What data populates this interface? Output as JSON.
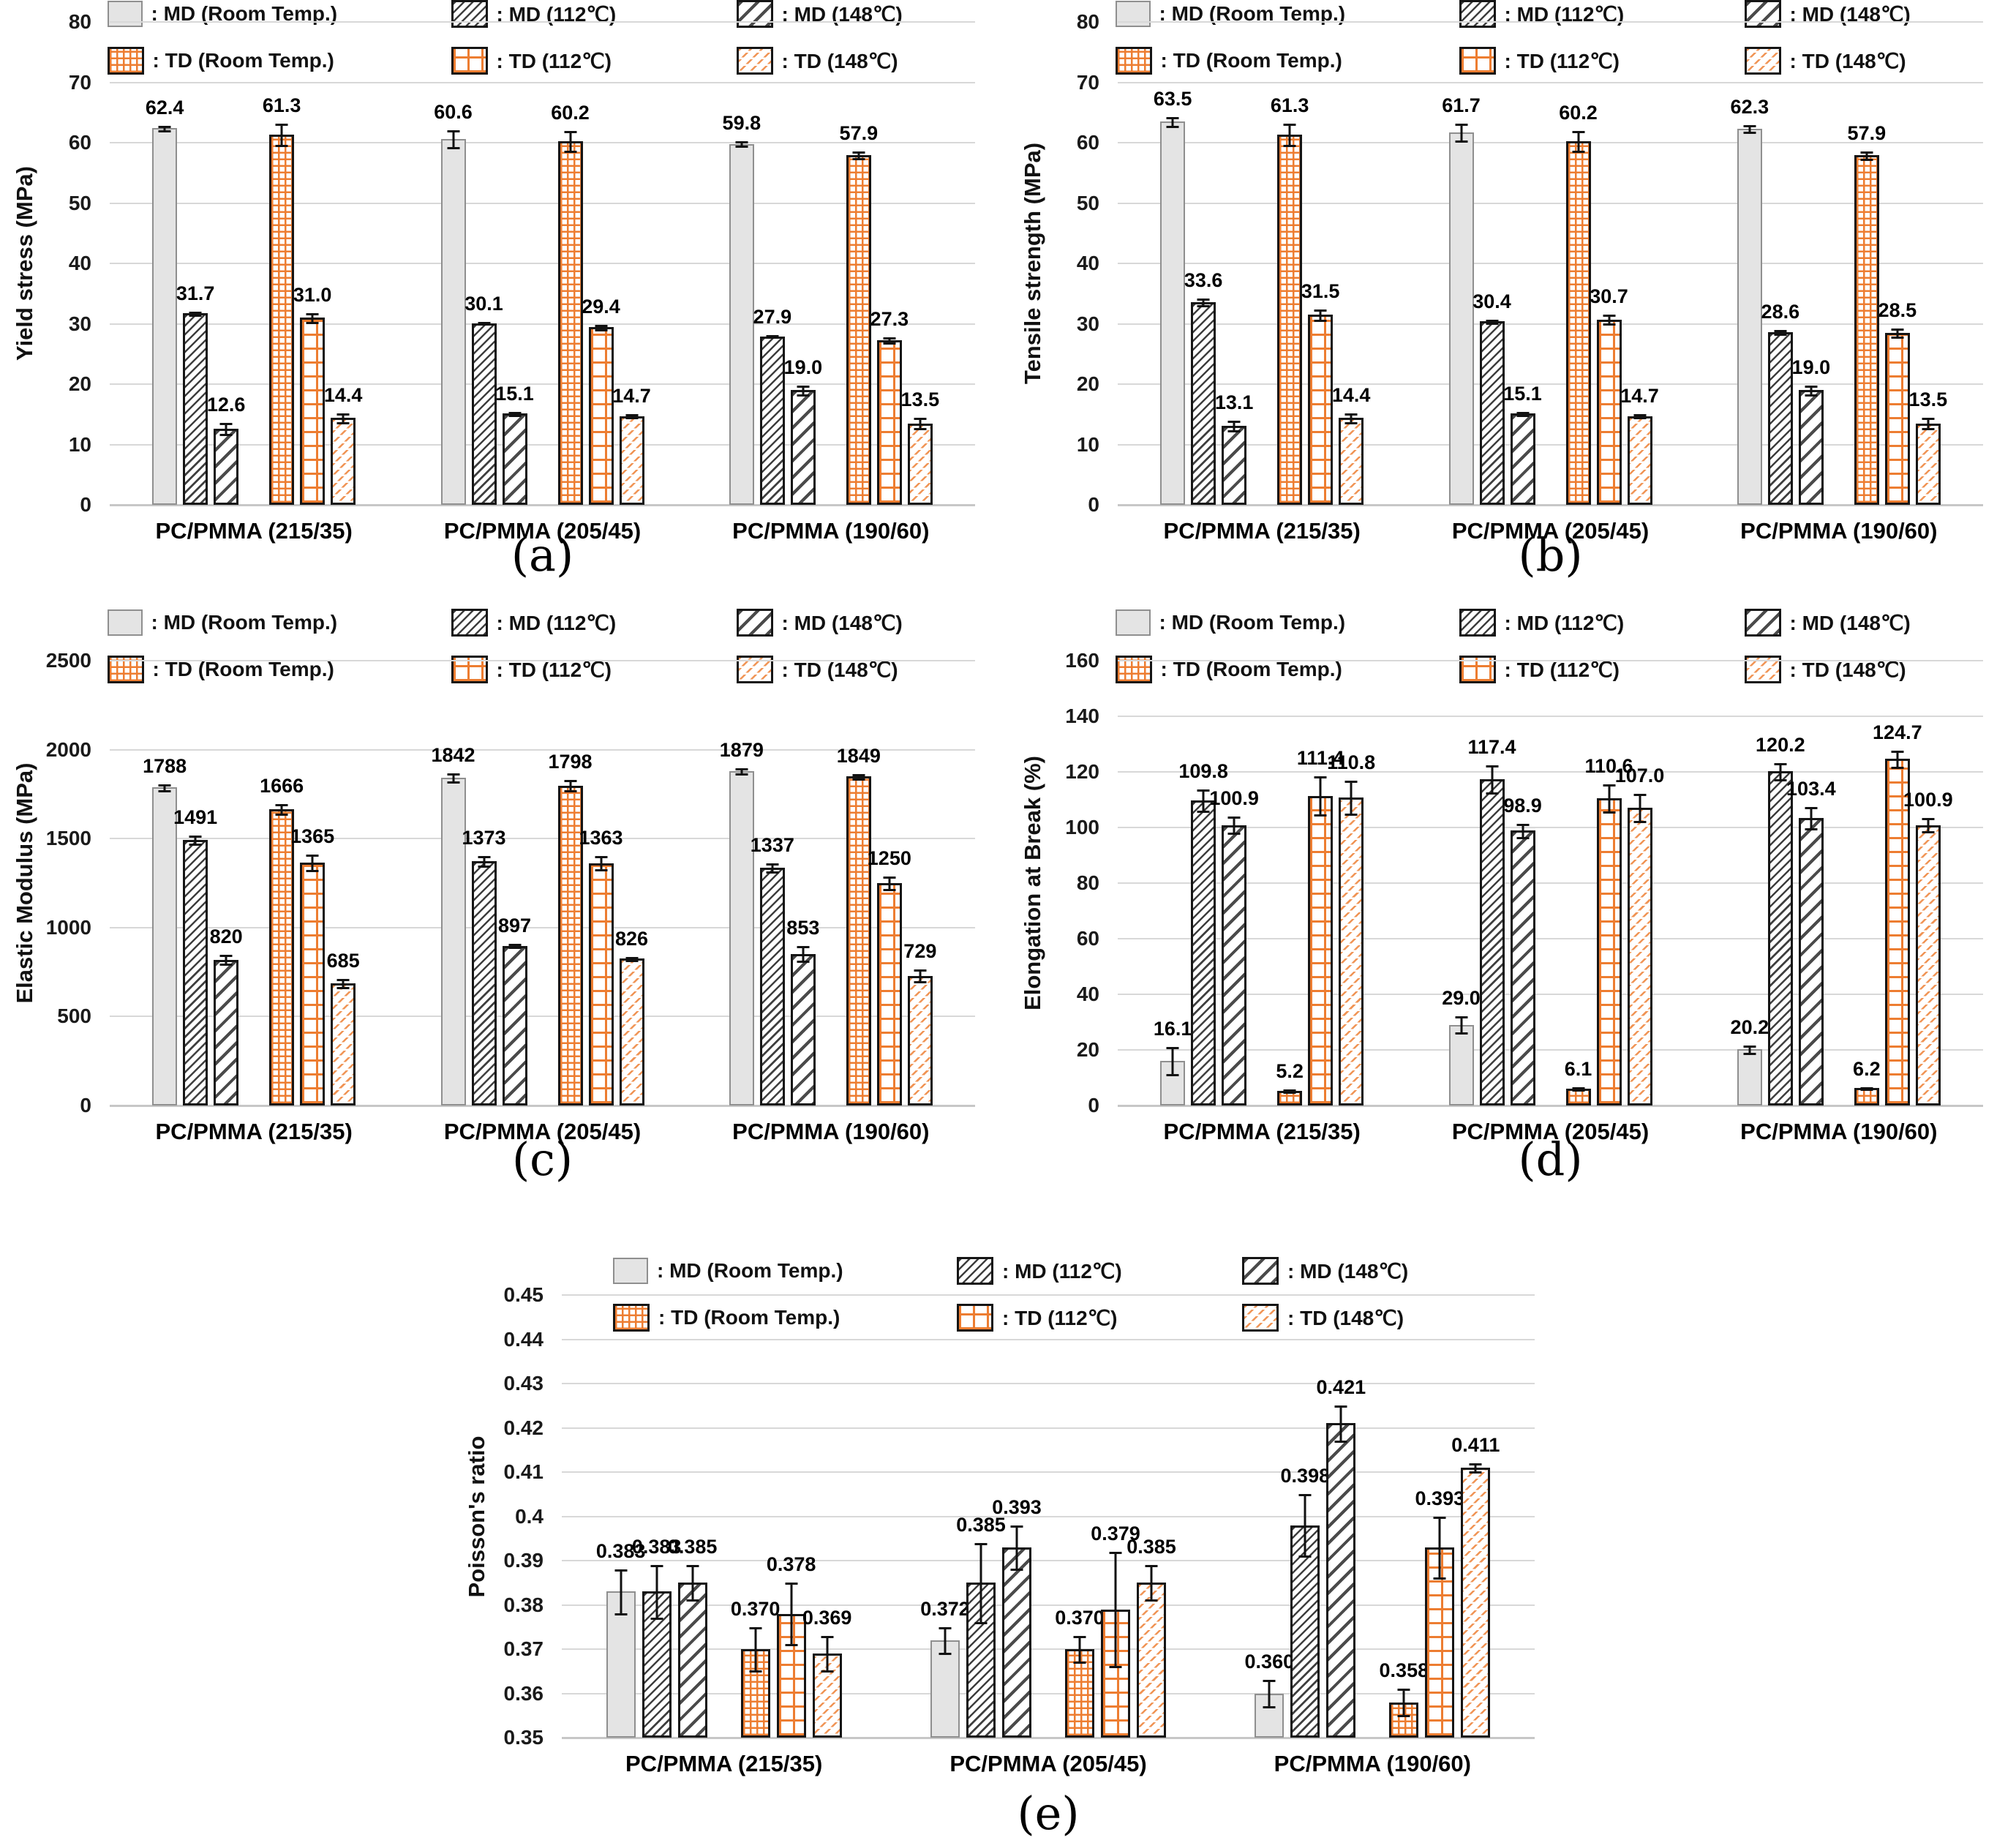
{
  "figure": {
    "background": "#ffffff",
    "colors": {
      "td_orange": "#ED7D31",
      "md_gray_fill": "#E4E4E4",
      "hatch_dark": "#3F3F3F",
      "gridline": "#D8D8D8",
      "label_text": "#000000"
    },
    "categories": [
      "PC/PMMA (215/35)",
      "PC/PMMA (205/45)",
      "PC/PMMA (190/60)"
    ],
    "legend_rows": [
      [
        0,
        1,
        2
      ],
      [
        3,
        4,
        5
      ]
    ]
  },
  "chart_data": [
    {
      "id": "a",
      "type": "bar",
      "caption": "(a)",
      "ylabel": "Yield stress (MPa)",
      "ylim": [
        0,
        80
      ],
      "value_decimals": 1,
      "grid": true,
      "legend_position": "top",
      "yticks": [
        {
          "v": 0,
          "label": "0"
        },
        {
          "v": 10,
          "label": "10"
        },
        {
          "v": 20,
          "label": "20"
        },
        {
          "v": 30,
          "label": "30"
        },
        {
          "v": 40,
          "label": "40"
        },
        {
          "v": 50,
          "label": "50"
        },
        {
          "v": 60,
          "label": "60"
        },
        {
          "v": 70,
          "label": "70"
        },
        {
          "v": 80,
          "label": "80"
        }
      ],
      "categories": [
        "PC/PMMA (215/35)",
        "PC/PMMA (205/45)",
        "PC/PMMA (190/60)"
      ],
      "series": [
        {
          "name": ": MD (Room Temp.)",
          "pattern": "md-rt",
          "values": [
            62.4,
            60.6,
            59.8
          ],
          "errors": [
            0.4,
            1.5,
            0.4
          ]
        },
        {
          "name": ": MD (112℃)",
          "pattern": "md-112",
          "values": [
            31.7,
            30.1,
            27.9
          ],
          "errors": [
            0.3,
            0.2,
            0.2
          ]
        },
        {
          "name": ": MD (148℃)",
          "pattern": "md-148",
          "values": [
            12.6,
            15.1,
            19.0
          ],
          "errors": [
            1.0,
            0.3,
            0.8
          ]
        },
        {
          "name": ": TD (Room Temp.)",
          "pattern": "td-rt",
          "values": [
            61.3,
            60.2,
            57.9
          ],
          "errors": [
            1.8,
            1.7,
            0.6
          ]
        },
        {
          "name": ": TD (112℃)",
          "pattern": "td-112",
          "values": [
            31.0,
            29.4,
            27.3
          ],
          "errors": [
            0.8,
            0.4,
            0.5
          ]
        },
        {
          "name": ": TD (148℃)",
          "pattern": "td-148",
          "values": [
            14.4,
            14.7,
            13.5
          ],
          "errors": [
            0.8,
            0.3,
            0.9
          ]
        }
      ]
    },
    {
      "id": "b",
      "type": "bar",
      "caption": "(b)",
      "ylabel": "Tensile strength (MPa)",
      "ylim": [
        0,
        80
      ],
      "value_decimals": 1,
      "grid": true,
      "legend_position": "top",
      "yticks": [
        {
          "v": 0,
          "label": "0"
        },
        {
          "v": 10,
          "label": "10"
        },
        {
          "v": 20,
          "label": "20"
        },
        {
          "v": 30,
          "label": "30"
        },
        {
          "v": 40,
          "label": "40"
        },
        {
          "v": 50,
          "label": "50"
        },
        {
          "v": 60,
          "label": "60"
        },
        {
          "v": 70,
          "label": "70"
        },
        {
          "v": 80,
          "label": "80"
        }
      ],
      "categories": [
        "PC/PMMA (215/35)",
        "PC/PMMA (205/45)",
        "PC/PMMA (190/60)"
      ],
      "series": [
        {
          "name": ": MD (Room Temp.)",
          "pattern": "md-rt",
          "values": [
            63.5,
            61.7,
            62.3
          ],
          "errors": [
            0.8,
            1.5,
            0.6
          ]
        },
        {
          "name": ": MD (112℃)",
          "pattern": "md-112",
          "values": [
            33.6,
            30.4,
            28.6
          ],
          "errors": [
            0.6,
            0.3,
            0.4
          ]
        },
        {
          "name": ": MD (148℃)",
          "pattern": "md-148",
          "values": [
            13.1,
            15.1,
            19.0
          ],
          "errors": [
            0.8,
            0.3,
            0.8
          ]
        },
        {
          "name": ": TD (Room Temp.)",
          "pattern": "td-rt",
          "values": [
            61.3,
            60.2,
            57.9
          ],
          "errors": [
            1.8,
            1.7,
            0.7
          ]
        },
        {
          "name": ": TD (112℃)",
          "pattern": "td-112",
          "values": [
            31.5,
            30.7,
            28.5
          ],
          "errors": [
            0.9,
            0.8,
            0.7
          ]
        },
        {
          "name": ": TD (148℃)",
          "pattern": "td-148",
          "values": [
            14.4,
            14.7,
            13.5
          ],
          "errors": [
            0.8,
            0.3,
            0.9
          ]
        }
      ]
    },
    {
      "id": "c",
      "type": "bar",
      "caption": "(c)",
      "ylabel": "Elastic Modulus (MPa)",
      "ylim": [
        0,
        2500
      ],
      "value_decimals": 0,
      "grid": true,
      "legend_position": "top",
      "yticks": [
        {
          "v": 0,
          "label": "0"
        },
        {
          "v": 500,
          "label": "500"
        },
        {
          "v": 1000,
          "label": "1000"
        },
        {
          "v": 1500,
          "label": "1500"
        },
        {
          "v": 2000,
          "label": "2000"
        },
        {
          "v": 2500,
          "label": "2500"
        }
      ],
      "categories": [
        "PC/PMMA (215/35)",
        "PC/PMMA (205/45)",
        "PC/PMMA (190/60)"
      ],
      "series": [
        {
          "name": ": MD (Room Temp.)",
          "pattern": "md-rt",
          "values": [
            1788,
            1842,
            1879
          ],
          "errors": [
            18,
            25,
            15
          ]
        },
        {
          "name": ": MD (112℃)",
          "pattern": "md-112",
          "values": [
            1491,
            1373,
            1337
          ],
          "errors": [
            25,
            30,
            25
          ]
        },
        {
          "name": ": MD (148℃)",
          "pattern": "md-148",
          "values": [
            820,
            897,
            853
          ],
          "errors": [
            28,
            10,
            45
          ]
        },
        {
          "name": ": TD (Room Temp.)",
          "pattern": "td-rt",
          "values": [
            1666,
            1798,
            1849
          ],
          "errors": [
            30,
            30,
            15
          ]
        },
        {
          "name": ": TD (112℃)",
          "pattern": "td-112",
          "values": [
            1365,
            1363,
            1250
          ],
          "errors": [
            45,
            40,
            35
          ]
        },
        {
          "name": ": TD (148℃)",
          "pattern": "td-148",
          "values": [
            685,
            826,
            729
          ],
          "errors": [
            25,
            10,
            35
          ]
        }
      ]
    },
    {
      "id": "d",
      "type": "bar",
      "caption": "(d)",
      "ylabel": "Elongation at Break (%)",
      "ylim": [
        0,
        160
      ],
      "value_decimals": 1,
      "grid": true,
      "legend_position": "top",
      "yticks": [
        {
          "v": 0,
          "label": "0"
        },
        {
          "v": 20,
          "label": "20"
        },
        {
          "v": 40,
          "label": "40"
        },
        {
          "v": 60,
          "label": "60"
        },
        {
          "v": 80,
          "label": "80"
        },
        {
          "v": 100,
          "label": "100"
        },
        {
          "v": 120,
          "label": "120"
        },
        {
          "v": 140,
          "label": "140"
        },
        {
          "v": 160,
          "label": "160"
        }
      ],
      "categories": [
        "PC/PMMA (215/35)",
        "PC/PMMA (205/45)",
        "PC/PMMA (190/60)"
      ],
      "series": [
        {
          "name": ": MD (Room Temp.)",
          "pattern": "md-rt",
          "values": [
            16.1,
            29.0,
            20.2
          ],
          "errors": [
            5,
            3,
            1.5
          ]
        },
        {
          "name": ": MD (112℃)",
          "pattern": "md-112",
          "values": [
            109.8,
            117.4,
            120.2
          ],
          "errors": [
            4,
            5,
            3
          ]
        },
        {
          "name": ": MD (148℃)",
          "pattern": "md-148",
          "values": [
            100.9,
            98.9,
            103.4
          ],
          "errors": [
            3,
            2.5,
            4
          ]
        },
        {
          "name": ": TD (Room Temp.)",
          "pattern": "td-rt",
          "values": [
            5.2,
            6.1,
            6.2
          ],
          "errors": [
            0.5,
            0.5,
            0.5
          ]
        },
        {
          "name": ": TD (112℃)",
          "pattern": "td-112",
          "values": [
            111.4,
            110.6,
            124.7
          ],
          "errors": [
            7,
            5,
            3
          ]
        },
        {
          "name": ": TD (148℃)",
          "pattern": "td-148",
          "values": [
            110.8,
            107.0,
            100.9
          ],
          "errors": [
            6,
            5,
            2.5
          ]
        }
      ]
    },
    {
      "id": "e",
      "type": "bar",
      "caption": "(e)",
      "ylabel": "Poisson's ratio",
      "ylim": [
        0.35,
        0.45
      ],
      "value_decimals": 3,
      "grid": true,
      "legend_position": "top",
      "yticks": [
        {
          "v": 0.35,
          "label": "0.35"
        },
        {
          "v": 0.36,
          "label": "0.36"
        },
        {
          "v": 0.37,
          "label": "0.37"
        },
        {
          "v": 0.38,
          "label": "0.38"
        },
        {
          "v": 0.39,
          "label": "0.39"
        },
        {
          "v": 0.4,
          "label": "0.4"
        },
        {
          "v": 0.41,
          "label": "0.41"
        },
        {
          "v": 0.42,
          "label": "0.42"
        },
        {
          "v": 0.43,
          "label": "0.43"
        },
        {
          "v": 0.44,
          "label": "0.44"
        },
        {
          "v": 0.45,
          "label": "0.45"
        }
      ],
      "categories": [
        "PC/PMMA (215/35)",
        "PC/PMMA (205/45)",
        "PC/PMMA (190/60)"
      ],
      "series": [
        {
          "name": ": MD (Room Temp.)",
          "pattern": "md-rt",
          "values": [
            0.383,
            0.372,
            0.36
          ],
          "errors": [
            0.005,
            0.003,
            0.003
          ]
        },
        {
          "name": ": MD (112℃)",
          "pattern": "md-112",
          "values": [
            0.383,
            0.385,
            0.398
          ],
          "errors": [
            0.006,
            0.009,
            0.007
          ]
        },
        {
          "name": ": MD (148℃)",
          "pattern": "md-148",
          "values": [
            0.385,
            0.393,
            0.421
          ],
          "errors": [
            0.004,
            0.005,
            0.004
          ]
        },
        {
          "name": ": TD (Room Temp.)",
          "pattern": "td-rt",
          "values": [
            0.37,
            0.37,
            0.358
          ],
          "errors": [
            0.005,
            0.003,
            0.003
          ]
        },
        {
          "name": ": TD (112℃)",
          "pattern": "td-112",
          "values": [
            0.378,
            0.379,
            0.393
          ],
          "errors": [
            0.007,
            0.013,
            0.007
          ]
        },
        {
          "name": ": TD (148℃)",
          "pattern": "td-148",
          "values": [
            0.369,
            0.385,
            0.411
          ],
          "errors": [
            0.004,
            0.004,
            0.001
          ]
        }
      ]
    }
  ]
}
